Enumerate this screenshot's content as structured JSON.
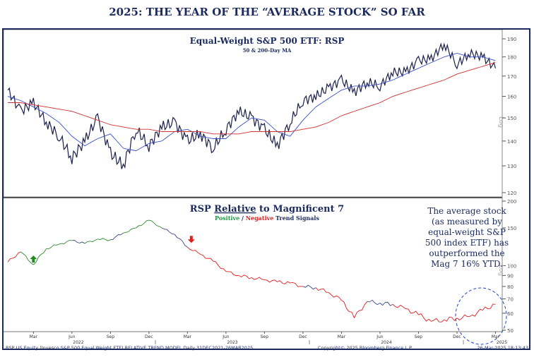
{
  "title": "2025: THE YEAR OF THE “AVERAGE STOCK” SO FAR",
  "chart_data": [
    {
      "type": "line",
      "title": "Equal-Weight S&P 500 ETF: RSP",
      "subtitle": "50 & 200-Day MA",
      "yscale": "log",
      "ylabel": "Log",
      "ylim": [
        118,
        192
      ],
      "yticks": [
        120,
        130,
        140,
        150,
        160,
        170,
        180,
        190
      ],
      "x": [
        "2022-01",
        "2022-02",
        "2022-03",
        "2022-04",
        "2022-05",
        "2022-06",
        "2022-07",
        "2022-08",
        "2022-09",
        "2022-10",
        "2022-11",
        "2022-12",
        "2023-01",
        "2023-02",
        "2023-03",
        "2023-04",
        "2023-05",
        "2023-06",
        "2023-07",
        "2023-08",
        "2023-09",
        "2023-10",
        "2023-11",
        "2023-12",
        "2024-01",
        "2024-02",
        "2024-03",
        "2024-04",
        "2024-05",
        "2024-06",
        "2024-07",
        "2024-08",
        "2024-09",
        "2024-10",
        "2024-11",
        "2024-12",
        "2025-01",
        "2025-02",
        "2025-03"
      ],
      "series": [
        {
          "name": "RSP",
          "color": "#1b1f4a",
          "values": [
            163,
            153,
            157,
            148,
            142,
            133,
            140,
            150,
            135,
            130,
            145,
            138,
            146,
            148,
            140,
            143,
            137,
            145,
            153,
            150,
            145,
            138,
            148,
            158,
            160,
            164,
            168,
            162,
            167,
            165,
            172,
            172,
            178,
            179,
            187,
            176,
            182,
            180,
            174
          ]
        },
        {
          "name": "50-Day MA",
          "color": "#3b4fc4",
          "values": [
            160,
            158,
            155,
            152,
            148,
            142,
            138,
            141,
            143,
            137,
            136,
            139,
            140,
            144,
            145,
            142,
            141,
            141,
            146,
            150,
            149,
            144,
            142,
            149,
            155,
            159,
            163,
            165,
            165,
            166,
            168,
            171,
            174,
            177,
            180,
            182,
            180,
            180,
            178
          ]
        },
        {
          "name": "200-Day MA",
          "color": "#d03030",
          "values": [
            157,
            157,
            156,
            155,
            154,
            153,
            151,
            149,
            147,
            146,
            145,
            145,
            144,
            144,
            144,
            144,
            143,
            143,
            143,
            144,
            144,
            144,
            144,
            145,
            146,
            148,
            151,
            153,
            155,
            157,
            160,
            162,
            164,
            166,
            168,
            171,
            173,
            175,
            177
          ]
        }
      ]
    },
    {
      "type": "line",
      "title": "RSP Relative to Magnificent 7",
      "title_parts": [
        "RSP ",
        "Relative",
        " to Magnificent 7"
      ],
      "subtitle_parts": {
        "positive": "Positive",
        "sep": " / ",
        "negative": "Negative",
        "rest": " Trend Signals"
      },
      "yscale": "log",
      "ylabel": "Log",
      "ylim": [
        48,
        205
      ],
      "yticks": [
        50,
        60,
        70,
        80,
        90,
        100,
        150,
        200
      ],
      "values": [
        104,
        116,
        101,
        120,
        126,
        131,
        127,
        133,
        132,
        142,
        150,
        163,
        150,
        140,
        122,
        113,
        105,
        94,
        90,
        88,
        86,
        84,
        83,
        80,
        79,
        75,
        69,
        57,
        68,
        67,
        66,
        63,
        59,
        55,
        56,
        57,
        58,
        62,
        66
      ],
      "signals": [
        "neg",
        "pos",
        "pos",
        "pos",
        "pos",
        "neu",
        "pos",
        "pos",
        "neu",
        "pos",
        "pos",
        "pos",
        "neu",
        "neu",
        "neg",
        "neg",
        "neg",
        "neg",
        "neg",
        "neg",
        "neg",
        "neg",
        "neg",
        "neu",
        "neg",
        "neg",
        "neg",
        "neg",
        "neu",
        "neu",
        "neg",
        "neg",
        "neg",
        "neg",
        "neg",
        "neg",
        "neg",
        "neg",
        "neu"
      ],
      "signal_colors": {
        "pos": "#2f8a2f",
        "neg": "#e02020",
        "neu": "#3a4a8a"
      },
      "markers": [
        {
          "type": "arrow-up",
          "color": "#1f8a1f",
          "date": "2022-03"
        },
        {
          "type": "arrow-down",
          "color": "#e02020",
          "date": "2023-03"
        }
      ],
      "annotation": "The average stock (as measured by equal-weight S&P 500 index ETF) has outperformed the Mag 7 16% YTD.",
      "highlight": {
        "type": "dashed-circle",
        "color": "#2244cc",
        "from": "2024-12",
        "to": "2025-03"
      }
    }
  ],
  "xaxis": {
    "months": [
      {
        "label": "Mar",
        "i": 2
      },
      {
        "label": "Jun",
        "i": 5
      },
      {
        "label": "Sep",
        "i": 8
      },
      {
        "label": "Dec",
        "i": 11
      },
      {
        "label": "Mar",
        "i": 14
      },
      {
        "label": "Jun",
        "i": 17
      },
      {
        "label": "Sep",
        "i": 20
      },
      {
        "label": "Dec",
        "i": 23
      },
      {
        "label": "Mar",
        "i": 26
      },
      {
        "label": "Jun",
        "i": 29
      },
      {
        "label": "Sep",
        "i": 32
      },
      {
        "label": "Dec",
        "i": 35
      },
      {
        "label": "Mar",
        "i": 38
      }
    ],
    "years": [
      {
        "label": "2022",
        "i": 5.5
      },
      {
        "label": "2023",
        "i": 17.5
      },
      {
        "label": "2024",
        "i": 29.5
      },
      {
        "label": "2025",
        "i": 38.5
      }
    ]
  },
  "footer": {
    "left": "RSP US Equity (Invesco S&P 500 Equal Weight ETF) RELATIVE TREND MODEL  Daily 31DEC2021-26MAR2025",
    "center": "Copyright© 2025 Bloomberg Finance L.P.",
    "right": "26-Mar-2025 18:13:43"
  }
}
